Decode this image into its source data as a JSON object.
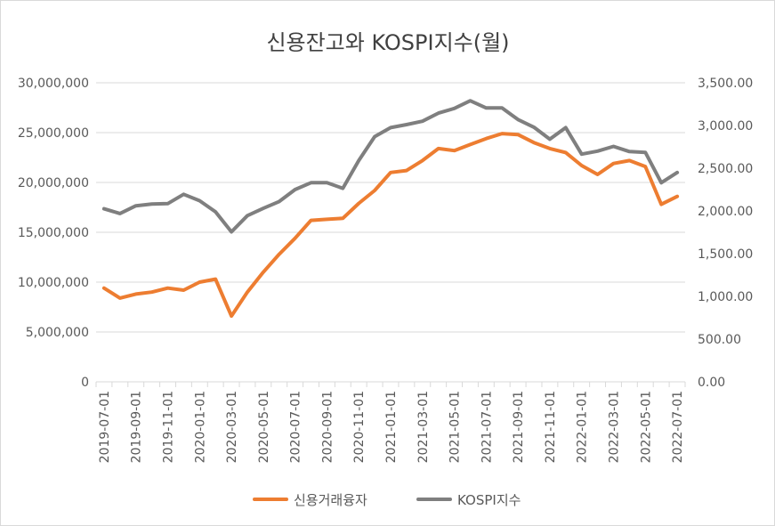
{
  "chart_data": {
    "type": "line",
    "title": "신용잔고와 KOSPI지수(월)",
    "categories": [
      "2019-07-01",
      "2019-08-01",
      "2019-09-01",
      "2019-10-01",
      "2019-11-01",
      "2019-12-01",
      "2020-01-01",
      "2020-02-01",
      "2020-03-01",
      "2020-04-01",
      "2020-05-01",
      "2020-06-01",
      "2020-07-01",
      "2020-08-01",
      "2020-09-01",
      "2020-10-01",
      "2020-11-01",
      "2020-12-01",
      "2021-01-01",
      "2021-02-01",
      "2021-03-01",
      "2021-04-01",
      "2021-05-01",
      "2021-06-01",
      "2021-07-01",
      "2021-08-01",
      "2021-09-01",
      "2021-10-01",
      "2021-11-01",
      "2021-12-01",
      "2022-01-01",
      "2022-02-01",
      "2022-03-01",
      "2022-04-01",
      "2022-05-01",
      "2022-06-01",
      "2022-07-01"
    ],
    "x_tick_labels": [
      "2019-07-01",
      "2019-09-01",
      "2019-11-01",
      "2020-01-01",
      "2020-03-01",
      "2020-05-01",
      "2020-07-01",
      "2020-09-01",
      "2020-11-01",
      "2021-01-01",
      "2021-03-01",
      "2021-05-01",
      "2021-07-01",
      "2021-09-01",
      "2021-11-01",
      "2022-01-01",
      "2022-03-01",
      "2022-05-01",
      "2022-07-01"
    ],
    "left_axis": {
      "ylim": [
        0,
        30000000
      ],
      "tick_labels": [
        "0",
        "5,000,000",
        "10,000,000",
        "15,000,000",
        "20,000,000",
        "25,000,000",
        "30,000,000"
      ]
    },
    "right_axis": {
      "ylim": [
        0,
        3500
      ],
      "tick_labels": [
        "0.00",
        "500.00",
        "1,000.00",
        "1,500.00",
        "2,000.00",
        "2,500.00",
        "3,000.00",
        "3,500.00"
      ]
    },
    "grid": true,
    "legend_position": "bottom",
    "series": [
      {
        "name": "신용거래융자",
        "axis": "left",
        "color": "#ed7d31",
        "values": [
          9400000,
          8400000,
          8800000,
          9000000,
          9400000,
          9200000,
          10000000,
          10300000,
          6600000,
          9000000,
          11000000,
          12800000,
          14400000,
          16200000,
          16300000,
          16400000,
          17900000,
          19200000,
          21000000,
          21200000,
          22200000,
          23400000,
          23200000,
          23800000,
          24400000,
          24900000,
          24800000,
          24000000,
          23400000,
          23000000,
          21700000,
          20800000,
          21900000,
          22200000,
          21600000,
          17800000,
          18600000
        ]
      },
      {
        "name": "KOSPI지수",
        "axis": "right",
        "color": "#7f7f7f",
        "values": [
          2025,
          1970,
          2060,
          2080,
          2085,
          2195,
          2120,
          1990,
          1755,
          1945,
          2030,
          2110,
          2250,
          2330,
          2330,
          2265,
          2590,
          2870,
          2975,
          3010,
          3050,
          3145,
          3200,
          3290,
          3205,
          3205,
          3070,
          2980,
          2840,
          2975,
          2665,
          2700,
          2755,
          2695,
          2685,
          2330,
          2450
        ]
      }
    ]
  }
}
